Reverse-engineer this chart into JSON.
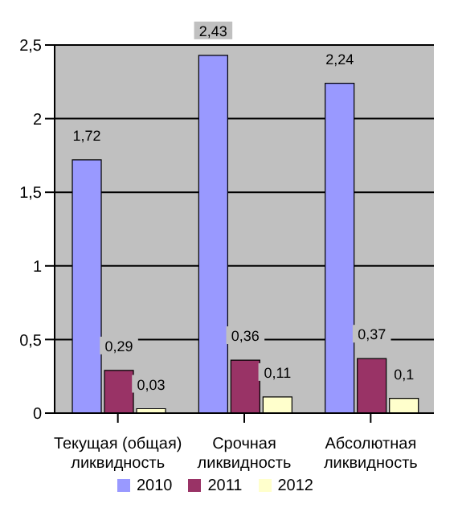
{
  "chart_data": {
    "type": "bar",
    "categories": [
      "Текущая (общая) ликвидность",
      "Срочная ликвидность",
      "Абсолютная ликвидность"
    ],
    "series": [
      {
        "name": "2010",
        "color": "#9999ff",
        "values": [
          1.72,
          2.43,
          2.24
        ],
        "value_labels": [
          "1,72",
          "2,43",
          "2,24"
        ]
      },
      {
        "name": "2011",
        "color": "#993366",
        "values": [
          0.29,
          0.36,
          0.37
        ],
        "value_labels": [
          "0,29",
          "0,36",
          "0,37"
        ]
      },
      {
        "name": "2012",
        "color": "#ffffcc",
        "values": [
          0.03,
          0.11,
          0.1
        ],
        "value_labels": [
          "0,03",
          "0,11",
          "0,1"
        ]
      }
    ],
    "ylim": [
      0,
      2.5
    ],
    "yticks": [
      0,
      {
        "value": 0.5,
        "label": "0,5"
      },
      1,
      {
        "value": 1.5,
        "label": "1,5"
      },
      2,
      {
        "value": 2.5,
        "label": "2,5"
      }
    ],
    "grid": "y",
    "legend": "bottom"
  }
}
